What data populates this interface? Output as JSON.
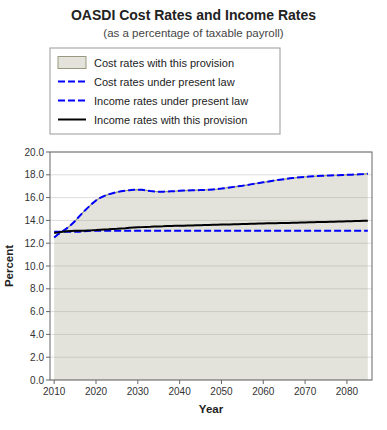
{
  "chart_data": {
    "type": "line",
    "title": "OASDI Cost Rates and Income Rates",
    "subtitle": "(as a percentage of taxable payroll)",
    "x_label": "Year",
    "y_label": "Percent",
    "xlim": [
      2009,
      2086
    ],
    "ylim": [
      0.0,
      20.0
    ],
    "xticks": [
      2010,
      2020,
      2030,
      2040,
      2050,
      2060,
      2070,
      2080
    ],
    "yticks": [
      {
        "value": 0.0,
        "label": "0.0"
      },
      {
        "value": 2.0,
        "label": "2.0"
      },
      {
        "value": 4.0,
        "label": "4.0"
      },
      {
        "value": 6.0,
        "label": "6.0"
      },
      {
        "value": 8.0,
        "label": "8.0"
      },
      {
        "value": 10.0,
        "label": "10.0"
      },
      {
        "value": 12.0,
        "label": "12.0"
      },
      {
        "value": 14.0,
        "label": "14.0"
      },
      {
        "value": 16.0,
        "label": "16.0"
      },
      {
        "value": 18.0,
        "label": "18.0"
      },
      {
        "value": 20.0,
        "label": "20.0"
      }
    ],
    "grid": true,
    "legend": "top",
    "x": [
      2010,
      2011,
      2012,
      2013,
      2014,
      2015,
      2016,
      2017,
      2018,
      2019,
      2020,
      2021,
      2022,
      2023,
      2024,
      2025,
      2026,
      2027,
      2028,
      2029,
      2030,
      2031,
      2032,
      2033,
      2034,
      2035,
      2036,
      2037,
      2038,
      2039,
      2040,
      2041,
      2042,
      2043,
      2044,
      2045,
      2046,
      2047,
      2048,
      2049,
      2050,
      2051,
      2052,
      2053,
      2054,
      2055,
      2056,
      2057,
      2058,
      2059,
      2060,
      2061,
      2062,
      2063,
      2064,
      2065,
      2066,
      2067,
      2068,
      2069,
      2070,
      2071,
      2072,
      2073,
      2074,
      2075,
      2076,
      2077,
      2078,
      2079,
      2080,
      2081,
      2082,
      2083,
      2084,
      2085
    ],
    "series": [
      {
        "name": "Cost rates with this provision",
        "type": "area",
        "color": "#999980",
        "line_style": "solid",
        "values": [
          12.5,
          12.8,
          13.05,
          13.3,
          13.6,
          13.95,
          14.35,
          14.75,
          15.1,
          15.45,
          15.75,
          15.98,
          16.15,
          16.28,
          16.38,
          16.48,
          16.55,
          16.6,
          16.65,
          16.68,
          16.7,
          16.68,
          16.63,
          16.58,
          16.54,
          16.52,
          16.52,
          16.53,
          16.55,
          16.57,
          16.6,
          16.62,
          16.63,
          16.64,
          16.65,
          16.66,
          16.67,
          16.69,
          16.72,
          16.75,
          16.79,
          16.84,
          16.89,
          16.94,
          16.99,
          17.04,
          17.1,
          17.16,
          17.22,
          17.28,
          17.34,
          17.4,
          17.46,
          17.52,
          17.57,
          17.62,
          17.67,
          17.71,
          17.75,
          17.79,
          17.82,
          17.85,
          17.87,
          17.89,
          17.91,
          17.93,
          17.94,
          17.96,
          17.97,
          17.99,
          18.0,
          18.01,
          18.02,
          18.04,
          18.06,
          18.1
        ]
      },
      {
        "name": "Cost rates under present law",
        "type": "line",
        "color": "blue",
        "line_style": "dashed",
        "values": [
          12.5,
          12.8,
          13.05,
          13.3,
          13.6,
          13.95,
          14.35,
          14.75,
          15.1,
          15.45,
          15.75,
          15.98,
          16.15,
          16.28,
          16.38,
          16.48,
          16.55,
          16.6,
          16.65,
          16.68,
          16.7,
          16.68,
          16.63,
          16.58,
          16.54,
          16.52,
          16.52,
          16.53,
          16.55,
          16.57,
          16.6,
          16.62,
          16.63,
          16.64,
          16.65,
          16.66,
          16.67,
          16.69,
          16.72,
          16.75,
          16.79,
          16.84,
          16.89,
          16.94,
          16.99,
          17.04,
          17.1,
          17.16,
          17.22,
          17.28,
          17.34,
          17.4,
          17.46,
          17.52,
          17.57,
          17.62,
          17.67,
          17.71,
          17.75,
          17.79,
          17.82,
          17.85,
          17.87,
          17.89,
          17.91,
          17.93,
          17.94,
          17.96,
          17.97,
          17.99,
          18.0,
          18.01,
          18.02,
          18.04,
          18.06,
          18.1
        ]
      },
      {
        "name": "Income rates under present law",
        "type": "line",
        "color": "blue",
        "line_style": "dashed",
        "values": [
          13.0,
          13.0,
          13.0,
          13.0,
          13.0,
          13.0,
          13.0,
          13.05,
          13.08,
          13.1,
          13.1,
          13.1,
          13.1,
          13.1,
          13.1,
          13.1,
          13.1,
          13.1,
          13.1,
          13.1,
          13.1,
          13.1,
          13.1,
          13.1,
          13.1,
          13.1,
          13.1,
          13.1,
          13.1,
          13.1,
          13.1,
          13.1,
          13.1,
          13.1,
          13.1,
          13.1,
          13.1,
          13.1,
          13.1,
          13.1,
          13.1,
          13.1,
          13.1,
          13.1,
          13.1,
          13.1,
          13.1,
          13.1,
          13.1,
          13.1,
          13.1,
          13.1,
          13.1,
          13.1,
          13.1,
          13.1,
          13.1,
          13.1,
          13.1,
          13.1,
          13.1,
          13.1,
          13.1,
          13.1,
          13.1,
          13.1,
          13.1,
          13.1,
          13.1,
          13.1,
          13.1,
          13.1,
          13.1,
          13.1,
          13.1,
          13.1
        ]
      },
      {
        "name": "Income rates with this provision",
        "type": "line",
        "color": "black",
        "line_style": "solid",
        "values": [
          12.9,
          12.95,
          13.0,
          13.05,
          13.08,
          13.1,
          13.1,
          13.1,
          13.12,
          13.13,
          13.15,
          13.18,
          13.2,
          13.22,
          13.25,
          13.27,
          13.3,
          13.32,
          13.35,
          13.37,
          13.39,
          13.41,
          13.43,
          13.44,
          13.46,
          13.47,
          13.48,
          13.5,
          13.51,
          13.52,
          13.53,
          13.54,
          13.55,
          13.56,
          13.57,
          13.58,
          13.59,
          13.6,
          13.61,
          13.62,
          13.63,
          13.64,
          13.65,
          13.66,
          13.67,
          13.68,
          13.69,
          13.7,
          13.71,
          13.72,
          13.73,
          13.74,
          13.75,
          13.76,
          13.77,
          13.77,
          13.78,
          13.79,
          13.8,
          13.81,
          13.82,
          13.83,
          13.84,
          13.85,
          13.86,
          13.87,
          13.88,
          13.89,
          13.9,
          13.91,
          13.92,
          13.93,
          13.94,
          13.95,
          13.96,
          13.97
        ]
      }
    ]
  }
}
